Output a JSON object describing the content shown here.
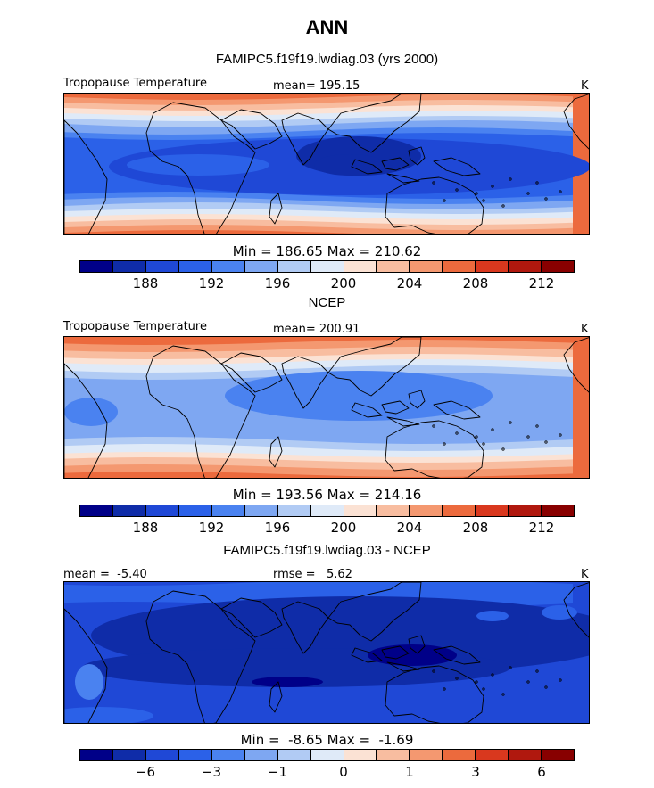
{
  "title": "ANN",
  "colorbar_colors": [
    "#000088",
    "#0f2ca8",
    "#1f48d6",
    "#2b61e8",
    "#4a82f0",
    "#7ea7f2",
    "#b1cbf4",
    "#dfeaf8",
    "#fbe2d4",
    "#f8bda0",
    "#f49870",
    "#ec6a3d",
    "#d9381e",
    "#b0180e",
    "#880000"
  ],
  "panels": [
    {
      "subtitle": "FAMIPC5.f19f19.lwdiag.03 (yrs 2000)",
      "left_label": "Tropopause Temperature",
      "center_label": "mean= 195.15",
      "units": "K",
      "minmax": "Min = 186.65 Max = 210.62",
      "tick_labels": [
        "188",
        "192",
        "196",
        "200",
        "204",
        "208",
        "212"
      ],
      "map_type": "model"
    },
    {
      "subtitle": "NCEP",
      "left_label": "Tropopause Temperature",
      "center_label": "mean= 200.91",
      "units": "K",
      "minmax": "Min = 193.56 Max = 214.16",
      "tick_labels": [
        "188",
        "192",
        "196",
        "200",
        "204",
        "208",
        "212"
      ],
      "map_type": "obs"
    },
    {
      "subtitle": "FAMIPC5.f19f19.lwdiag.03 - NCEP",
      "left_label": "mean =  -5.40",
      "center_label": "rmse =   5.62",
      "units": "K",
      "minmax": "Min =  -8.65 Max =  -1.69",
      "tick_labels": [
        "−6",
        "−3",
        "−1",
        "0",
        "1",
        "3",
        "6"
      ],
      "map_type": "diff"
    }
  ]
}
